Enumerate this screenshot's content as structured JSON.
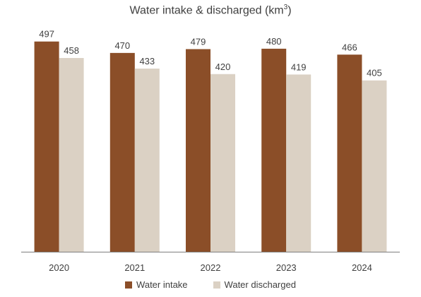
{
  "chart_data": {
    "type": "bar",
    "title": "Water intake & discharged (km",
    "title_sup": "3",
    "title_suffix": ")",
    "categories": [
      "2020",
      "2021",
      "2022",
      "2023",
      "2024"
    ],
    "series": [
      {
        "name": "Water intake",
        "color": "#8B4E28",
        "values": [
          497,
          470,
          479,
          480,
          466
        ]
      },
      {
        "name": "Water discharged",
        "color": "#DBD1C4",
        "values": [
          458,
          433,
          420,
          419,
          405
        ]
      }
    ],
    "ylim": [
      0,
      545
    ],
    "grid": false,
    "legend_position": "bottom"
  }
}
